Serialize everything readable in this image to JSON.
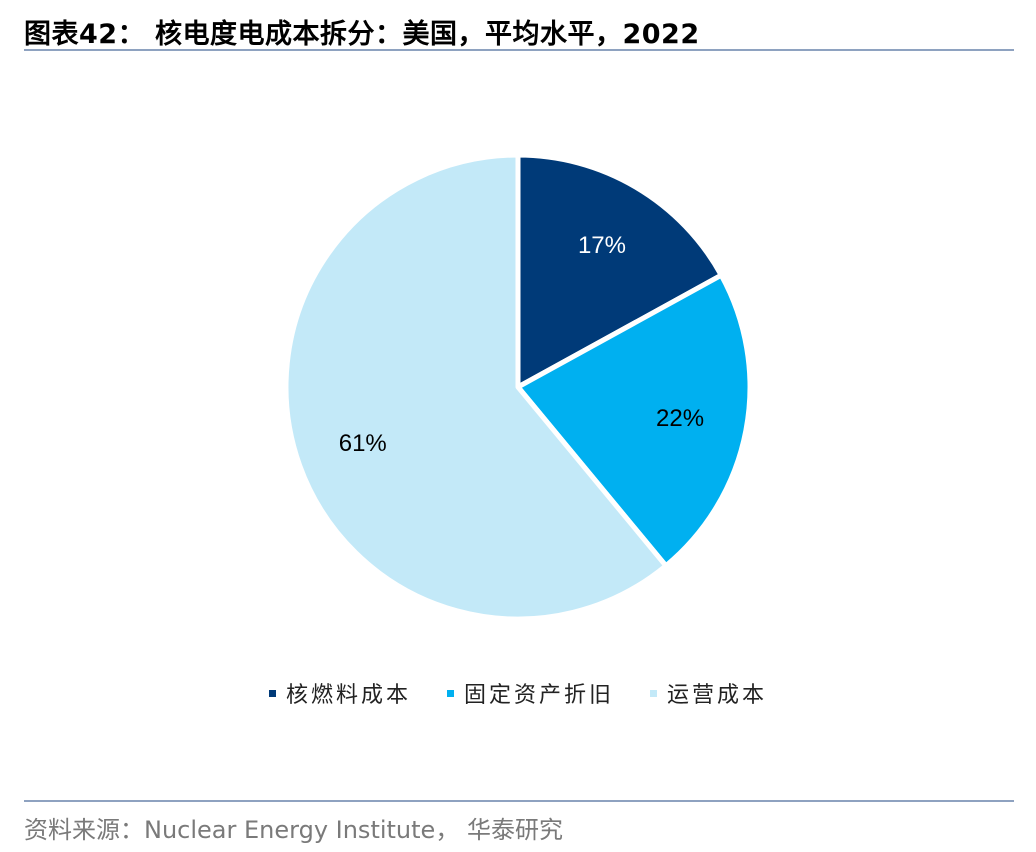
{
  "title": "图表42： 核电度电成本拆分：美国，平均水平，2022",
  "source": "资料来源：Nuclear Energy Institute，  华泰研究",
  "colors": {
    "rule": "#8ea2c0"
  },
  "chart_data": {
    "type": "pie",
    "categories": [
      "核燃料成本",
      "固定资产折旧",
      "运营成本"
    ],
    "values": [
      17,
      22,
      61
    ],
    "labels": [
      "17%",
      "22%",
      "61%"
    ],
    "colors": [
      "#003a78",
      "#00b0f0",
      "#c3e9f8"
    ],
    "label_colors": [
      "#ffffff",
      "#000000",
      "#000000"
    ],
    "start_angle": "12 o'clock",
    "direction": "clockwise",
    "legend_position": "bottom"
  }
}
